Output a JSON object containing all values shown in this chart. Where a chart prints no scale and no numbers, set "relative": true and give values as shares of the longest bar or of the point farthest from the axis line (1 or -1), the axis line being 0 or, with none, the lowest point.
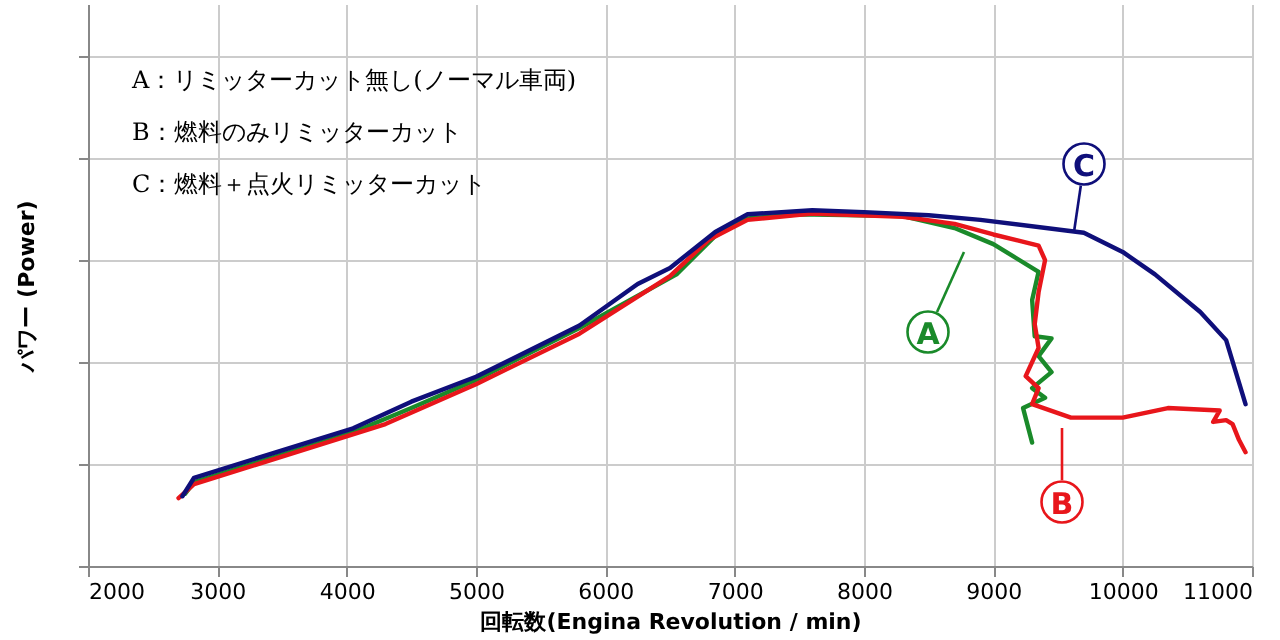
{
  "chart_data": {
    "type": "line",
    "relative": true,
    "xlabel": "回転数(Engina Revolution / min)",
    "ylabel": "パワー (Power)",
    "xlim": [
      2000,
      11000
    ],
    "xticks": [
      2000,
      3000,
      4000,
      5000,
      6000,
      7000,
      8000,
      9000,
      10000,
      11000
    ],
    "grid": true,
    "legend": false,
    "tick_labels": "x",
    "line_style": "solid",
    "marker": "none",
    "series": [
      {
        "color": "#1a8a2a",
        "x": [
          2750,
          2820,
          4050,
          4500,
          5000,
          5800,
          6550,
          6850,
          7100,
          7500,
          8300,
          8700,
          9000,
          9350,
          9300,
          9320,
          9450,
          9350,
          9450,
          9300,
          9400,
          9230,
          9300
        ],
        "values": [
          0.203,
          0.236,
          0.376,
          0.444,
          0.523,
          0.669,
          0.82,
          0.928,
          0.977,
          0.989,
          0.984,
          0.95,
          0.905,
          0.827,
          0.748,
          0.646,
          0.64,
          0.59,
          0.545,
          0.5,
          0.473,
          0.444,
          0.347
        ]
      },
      {
        "color": "#e8161b",
        "x": [
          2700,
          2820,
          4300,
          5000,
          5800,
          6500,
          6800,
          7100,
          7600,
          8300,
          8700,
          9000,
          9350,
          9400,
          9350,
          9320,
          9350,
          9250,
          9350,
          9300,
          9600,
          10000,
          10350,
          10750,
          10700,
          10800,
          10850,
          10900,
          10950
        ],
        "values": [
          0.191,
          0.23,
          0.399,
          0.511,
          0.653,
          0.815,
          0.917,
          0.973,
          0.991,
          0.982,
          0.962,
          0.932,
          0.901,
          0.86,
          0.77,
          0.68,
          0.613,
          0.534,
          0.5,
          0.455,
          0.417,
          0.417,
          0.444,
          0.437,
          0.405,
          0.41,
          0.399,
          0.354,
          0.32
        ]
      },
      {
        "color": "#0f0f7a",
        "x": [
          2730,
          2820,
          4050,
          4500,
          5000,
          5800,
          6250,
          6500,
          6850,
          7100,
          7600,
          8000,
          8500,
          8900,
          9700,
          10000,
          10250,
          10600,
          10800,
          10950
        ],
        "values": [
          0.196,
          0.248,
          0.387,
          0.462,
          0.532,
          0.676,
          0.793,
          0.838,
          0.939,
          0.989,
          1,
          0.995,
          0.986,
          0.973,
          0.937,
          0.883,
          0.82,
          0.714,
          0.635,
          0.455
        ]
      }
    ],
    "annotations": [
      "A：リミッターカット無し(ノーマル車両)",
      "B：燃料のみリミッターカット",
      "C：燃料＋点火リミッターカット",
      "A",
      "B",
      "C"
    ]
  }
}
